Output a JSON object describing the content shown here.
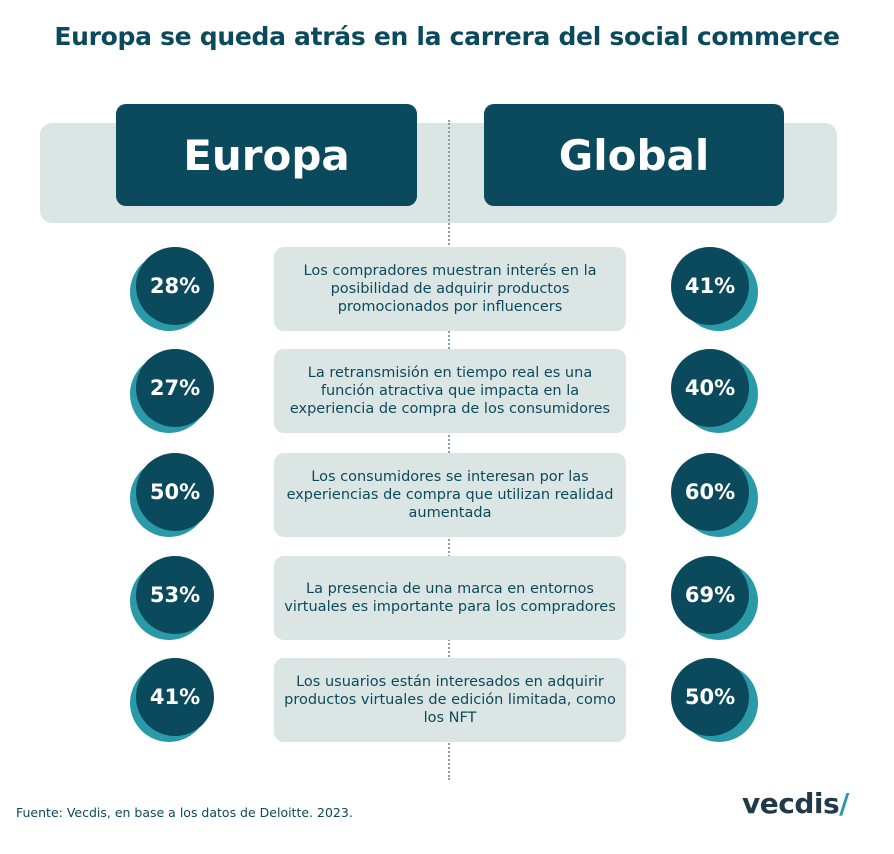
{
  "title": "Europa se queda atrás en la carrera del social commerce",
  "chart_data": {
    "type": "table",
    "columns": [
      "Europa",
      "Global"
    ],
    "rows": [
      {
        "label": "Los compradores muestran interés en la posibilidad de adquirir productos promocionados por influencers",
        "europa": "28%",
        "global": "41%"
      },
      {
        "label": "La retransmisión en tiempo real es una función atractiva que impacta en la experiencia de compra de los consumidores",
        "europa": "27%",
        "global": "40%"
      },
      {
        "label": "Los consumidores se interesan por las experiencias de compra que utilizan realidad aumentada",
        "europa": "50%",
        "global": "60%"
      },
      {
        "label": "La presencia de una marca en entornos virtuales es importante para los compradores",
        "europa": "53%",
        "global": "69%"
      },
      {
        "label": "Los usuarios están interesados en adquirir productos virtuales de edición limitada, como los NFT",
        "europa": "41%",
        "global": "50%"
      }
    ]
  },
  "source": "Fuente: Vecdis, en base a los datos de Deloitte. 2023.",
  "logo": {
    "text": "vecdis",
    "mark": "/"
  },
  "colors": {
    "primary": "#0b4a5c",
    "accent": "#2a9aa8",
    "panel": "#dbe6e4"
  }
}
